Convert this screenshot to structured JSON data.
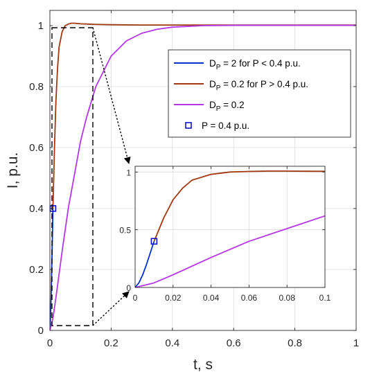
{
  "chart_data": [
    {
      "type": "line",
      "panel": "main",
      "xlabel": "t, s",
      "ylabel": "I, p.u.",
      "xlim": [
        0,
        1
      ],
      "ylim": [
        0,
        1.05
      ],
      "xticks": [
        "0",
        "0.2",
        "0.4",
        "0.6",
        "0.8",
        "1"
      ],
      "yticks": [
        "0",
        "0.2",
        "0.4",
        "0.6",
        "0.8",
        "1"
      ],
      "grid": true,
      "legend_position": "top-right",
      "series": [
        {
          "name": "DP = 2 for P < 0.4 p.u.",
          "color": "#0033cc",
          "x": [
            0,
            0.002,
            0.004,
            0.006,
            0.008,
            0.01
          ],
          "y": [
            0,
            0.04,
            0.11,
            0.2,
            0.3,
            0.4
          ]
        },
        {
          "name": "DP = 0.2 for P > 0.4 p.u.",
          "color": "#a0380f",
          "x": [
            0.01,
            0.015,
            0.02,
            0.025,
            0.03,
            0.04,
            0.05,
            0.06,
            0.07,
            0.08,
            0.09,
            0.1,
            0.15,
            0.2,
            0.3,
            0.4,
            0.6,
            0.8,
            1.0
          ],
          "y": [
            0.4,
            0.6,
            0.76,
            0.86,
            0.93,
            0.98,
            1.0,
            1.005,
            1.008,
            1.008,
            1.007,
            1.006,
            1.004,
            1.003,
            1.002,
            1.002,
            1.002,
            1.002,
            1.002
          ]
        },
        {
          "name": "DP = 0.2",
          "color": "#b535e6",
          "x": [
            0,
            0.01,
            0.02,
            0.04,
            0.06,
            0.08,
            0.1,
            0.12,
            0.15,
            0.2,
            0.25,
            0.3,
            0.35,
            0.4,
            0.5,
            0.6,
            0.8,
            1.0
          ],
          "y": [
            0,
            0.04,
            0.11,
            0.26,
            0.4,
            0.51,
            0.62,
            0.7,
            0.8,
            0.9,
            0.95,
            0.975,
            0.988,
            0.995,
            1.0,
            1.001,
            1.001,
            1.001
          ]
        }
      ],
      "markers": [
        {
          "name": "P = 0.4 p.u.",
          "color": "#0000cc",
          "shape": "square",
          "x": 0.01,
          "y": 0.4
        }
      ],
      "legend": [
        {
          "main": "D",
          "sub": "P",
          "rest": " = 2 for P < 0.4 p.u.",
          "color": "#0033cc",
          "kind": "line"
        },
        {
          "main": "D",
          "sub": "P",
          "rest": " = 0.2 for P > 0.4 p.u.",
          "color": "#a0380f",
          "kind": "line"
        },
        {
          "main": "D",
          "sub": "P",
          "rest": " = 0.2",
          "color": "#b535e6",
          "kind": "line"
        },
        {
          "main": "P = 0.4 p.u.",
          "sub": "",
          "rest": "",
          "color": "#0000cc",
          "kind": "square"
        }
      ]
    },
    {
      "type": "line",
      "panel": "inset",
      "xlim": [
        0,
        0.1
      ],
      "ylim": [
        0,
        1.05
      ],
      "xticks": [
        "0",
        "0.02",
        "0.04",
        "0.06",
        "0.08",
        "0.1"
      ],
      "yticks": [
        "0",
        "0.5",
        "1"
      ],
      "grid": true,
      "zoom_region": {
        "x": [
          0,
          0.14
        ],
        "y": [
          0.02,
          1.05
        ]
      }
    }
  ]
}
